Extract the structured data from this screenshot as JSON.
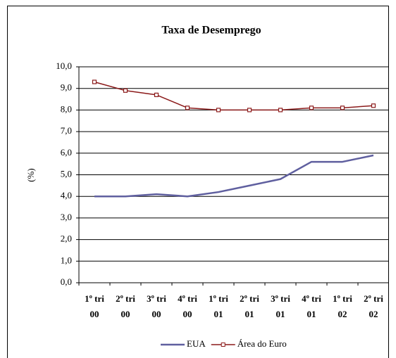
{
  "chart_data": {
    "type": "line",
    "title": "Taxa de Desemprego",
    "y_label": "(%)",
    "categories": [
      "1º tri 00",
      "2º tri 00",
      "3º tri 00",
      "4º tri 00",
      "1º tri 01",
      "2º tri 01",
      "3º tri 01",
      "4º tri 01",
      "1º tri 02",
      "2º tri 02"
    ],
    "series": [
      {
        "name": "EUA",
        "color": "#5f5f9f",
        "marker": false,
        "values": [
          4.0,
          4.0,
          4.1,
          4.0,
          4.2,
          4.5,
          4.8,
          5.6,
          5.6,
          5.9
        ]
      },
      {
        "name": "Área do Euro",
        "color": "#8b1a1a",
        "marker": true,
        "values": [
          9.3,
          8.9,
          8.7,
          8.1,
          8.0,
          8.0,
          8.0,
          8.1,
          8.1,
          8.2
        ]
      }
    ],
    "ylim": [
      0,
      10
    ],
    "yticks": [
      {
        "value": 0,
        "label": "0,0"
      },
      {
        "value": 1,
        "label": "1,0"
      },
      {
        "value": 2,
        "label": "2,0"
      },
      {
        "value": 3,
        "label": "3,0"
      },
      {
        "value": 4,
        "label": "4,0"
      },
      {
        "value": 5,
        "label": "5,0"
      },
      {
        "value": 6,
        "label": "6,0"
      },
      {
        "value": 7,
        "label": "7,0"
      },
      {
        "value": 8,
        "label": "8,0"
      },
      {
        "value": 9,
        "label": "9,0"
      },
      {
        "value": 10,
        "label": "10,0"
      }
    ],
    "grid": true,
    "legend": "bottom"
  }
}
